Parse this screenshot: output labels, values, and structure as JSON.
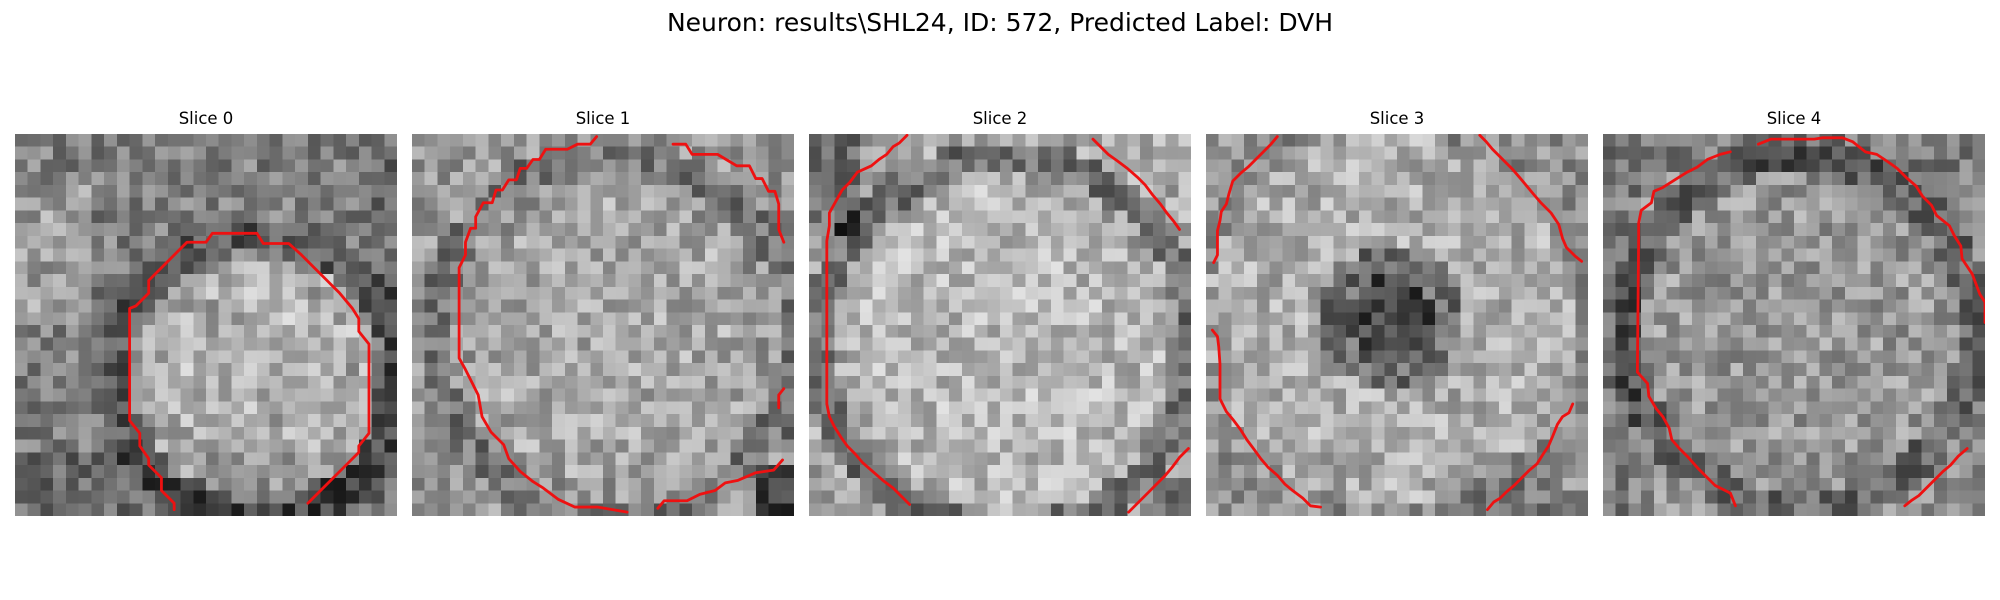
{
  "figure": {
    "title": "Neuron: results\\SHL24, ID: 572, Predicted Label: DVH",
    "contour_color": "#ee1111",
    "colormap": "gray"
  },
  "slices": [
    {
      "title": "Slice 0",
      "seed": 11,
      "base": 0.5,
      "contour": "full_lower_right"
    },
    {
      "title": "Slice 1",
      "seed": 23,
      "base": 0.6,
      "contour": "large_open"
    },
    {
      "title": "Slice 2",
      "seed": 37,
      "base": 0.66,
      "contour": "frame_corners"
    },
    {
      "title": "Slice 3",
      "seed": 41,
      "base": 0.68,
      "contour": "split_sides"
    },
    {
      "title": "Slice 4",
      "seed": 59,
      "base": 0.58,
      "contour": "large_closed"
    }
  ]
}
